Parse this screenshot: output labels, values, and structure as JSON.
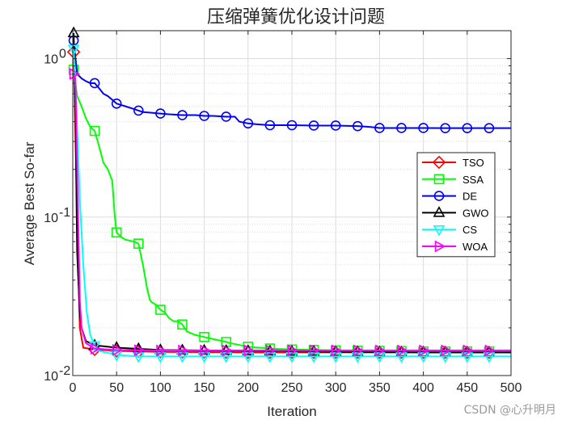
{
  "chart_data": {
    "type": "line",
    "title": "压缩弹簧优化设计问题",
    "xlabel": "Iteration",
    "ylabel": "Average Best So-far",
    "xlim": [
      0,
      500
    ],
    "ylim": [
      0.01,
      1.5
    ],
    "yscale": "log",
    "grid": true,
    "legend_position": "right",
    "x_ticks": [
      0,
      50,
      100,
      150,
      200,
      250,
      300,
      350,
      400,
      450,
      500
    ],
    "y_ticks": [
      {
        "value": 0.01,
        "base": "10",
        "exp": "-2"
      },
      {
        "value": 0.1,
        "base": "10",
        "exp": "-1"
      },
      {
        "value": 1,
        "base": "10",
        "exp": "0"
      }
    ],
    "series": [
      {
        "name": "TSO",
        "color": "#ff0000",
        "marker": "diamond",
        "x": [
          1,
          5,
          8,
          12,
          18,
          25,
          50,
          100,
          200,
          300,
          400,
          500
        ],
        "y": [
          1.1,
          0.1,
          0.02,
          0.015,
          0.0148,
          0.0146,
          0.0143,
          0.0141,
          0.014,
          0.014,
          0.014,
          0.014
        ]
      },
      {
        "name": "SSA",
        "color": "#00ff00",
        "marker": "square",
        "x": [
          1,
          5,
          10,
          15,
          20,
          25,
          30,
          35,
          40,
          45,
          48,
          50,
          55,
          60,
          65,
          70,
          75,
          80,
          85,
          88,
          90,
          95,
          100,
          105,
          110,
          115,
          120,
          125,
          130,
          140,
          150,
          160,
          175,
          180,
          200,
          225,
          250,
          300,
          350,
          400,
          450,
          500
        ],
        "y": [
          0.85,
          0.58,
          0.5,
          0.42,
          0.37,
          0.35,
          0.28,
          0.22,
          0.2,
          0.17,
          0.1,
          0.08,
          0.075,
          0.072,
          0.071,
          0.07,
          0.068,
          0.05,
          0.035,
          0.03,
          0.029,
          0.028,
          0.026,
          0.025,
          0.023,
          0.022,
          0.022,
          0.021,
          0.019,
          0.018,
          0.0175,
          0.017,
          0.0163,
          0.016,
          0.0152,
          0.0148,
          0.0146,
          0.0144,
          0.0143,
          0.0142,
          0.0142,
          0.0142
        ]
      },
      {
        "name": "DE",
        "color": "#0000ff",
        "marker": "circle",
        "x": [
          1,
          5,
          10,
          15,
          20,
          25,
          30,
          35,
          40,
          45,
          50,
          60,
          70,
          75,
          80,
          90,
          100,
          110,
          125,
          140,
          150,
          160,
          175,
          185,
          190,
          200,
          210,
          225,
          250,
          275,
          300,
          325,
          340,
          350,
          375,
          400,
          425,
          450,
          475,
          500
        ],
        "y": [
          1.3,
          0.8,
          0.75,
          0.72,
          0.7,
          0.7,
          0.65,
          0.6,
          0.58,
          0.55,
          0.52,
          0.5,
          0.48,
          0.47,
          0.46,
          0.455,
          0.45,
          0.445,
          0.44,
          0.44,
          0.435,
          0.435,
          0.43,
          0.43,
          0.4,
          0.39,
          0.385,
          0.38,
          0.38,
          0.378,
          0.378,
          0.375,
          0.37,
          0.365,
          0.365,
          0.365,
          0.364,
          0.364,
          0.364,
          0.364
        ]
      },
      {
        "name": "GWO",
        "color": "#000000",
        "marker": "triangle-up",
        "x": [
          1,
          3,
          5,
          8,
          10,
          15,
          25,
          50,
          100,
          200,
          300,
          400,
          500
        ],
        "y": [
          1.45,
          0.5,
          0.06,
          0.025,
          0.02,
          0.0165,
          0.0155,
          0.015,
          0.0145,
          0.0143,
          0.0141,
          0.014,
          0.014
        ]
      },
      {
        "name": "CS",
        "color": "#00ffff",
        "marker": "triangle-down",
        "x": [
          1,
          4,
          8,
          12,
          16,
          20,
          25,
          30,
          50,
          75,
          100,
          200,
          300,
          400,
          500
        ],
        "y": [
          1.15,
          0.5,
          0.13,
          0.05,
          0.025,
          0.018,
          0.0155,
          0.0143,
          0.0135,
          0.0132,
          0.0132,
          0.0132,
          0.0132,
          0.0132,
          0.0132
        ]
      },
      {
        "name": "WOA",
        "color": "#ff00ff",
        "marker": "triangle-right",
        "x": [
          1,
          3,
          5,
          8,
          10,
          15,
          25,
          50,
          100,
          200,
          300,
          400,
          500
        ],
        "y": [
          0.8,
          0.75,
          0.2,
          0.03,
          0.02,
          0.016,
          0.0148,
          0.0145,
          0.0144,
          0.0144,
          0.0144,
          0.0144,
          0.0144
        ]
      }
    ]
  },
  "watermark": "CSDN @心升明月"
}
